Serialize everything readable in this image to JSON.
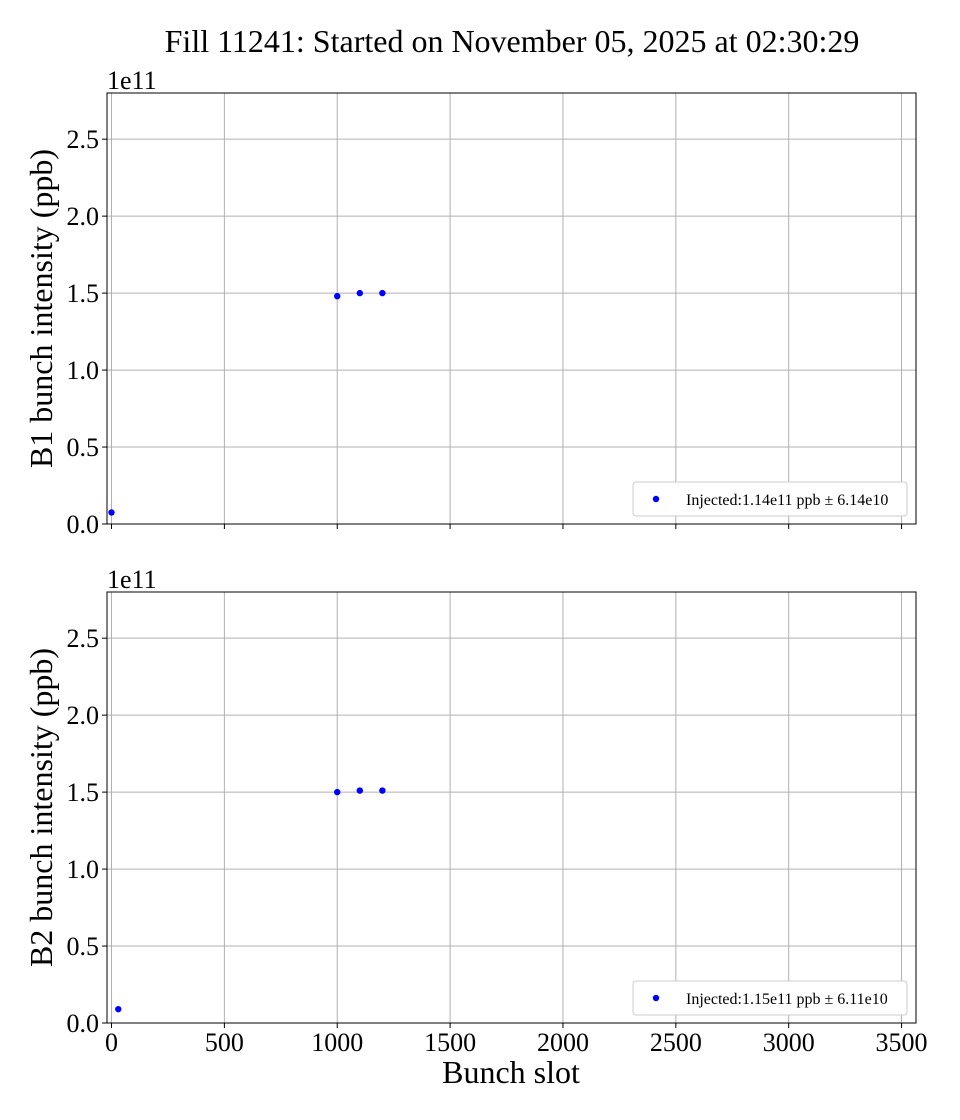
{
  "figure": {
    "title": "Fill 11241: Started on November 05, 2025 at 02:30:29",
    "xlabel": "Bunch slot"
  },
  "colors": {
    "marker": "#0000ff",
    "grid": "#b0b0b0",
    "axes": "#000000",
    "legend_border": "#cccccc"
  },
  "chart_data": [
    {
      "type": "scatter",
      "ylabel": "B1 bunch intensity (ppb)",
      "offset_text": "1e11",
      "xlim": [
        -20,
        3564
      ],
      "ylim": [
        0,
        280000000000.0
      ],
      "x_ticks": [
        0,
        500,
        1000,
        1500,
        2000,
        2500,
        3000,
        3500
      ],
      "x_tick_labels_visible": false,
      "y_ticks": [
        0,
        50000000000.0,
        100000000000.0,
        150000000000.0,
        200000000000.0,
        250000000000.0
      ],
      "y_tick_labels": [
        "0.0",
        "0.5",
        "1.0",
        "1.5",
        "2.0",
        "2.5"
      ],
      "grid": true,
      "legend_position": "lower right",
      "series": [
        {
          "name": "Injected:1.14e11 ppb ± 6.14e10",
          "x": [
            0,
            1000,
            1100,
            1200
          ],
          "y": [
            7500000000.0,
            148000000000.0,
            150000000000.0,
            150000000000.0
          ]
        }
      ]
    },
    {
      "type": "scatter",
      "ylabel": "B2 bunch intensity (ppb)",
      "offset_text": "1e11",
      "xlim": [
        -20,
        3564
      ],
      "ylim": [
        0,
        280000000000.0
      ],
      "x_ticks": [
        0,
        500,
        1000,
        1500,
        2000,
        2500,
        3000,
        3500
      ],
      "x_tick_labels": [
        "0",
        "500",
        "1000",
        "1500",
        "2000",
        "2500",
        "3000",
        "3500"
      ],
      "x_tick_labels_visible": true,
      "y_ticks": [
        0,
        50000000000.0,
        100000000000.0,
        150000000000.0,
        200000000000.0,
        250000000000.0
      ],
      "y_tick_labels": [
        "0.0",
        "0.5",
        "1.0",
        "1.5",
        "2.0",
        "2.5"
      ],
      "grid": true,
      "legend_position": "lower right",
      "series": [
        {
          "name": "Injected:1.15e11 ppb ± 6.11e10",
          "x": [
            30,
            1000,
            1100,
            1200
          ],
          "y": [
            9000000000.0,
            150000000000.0,
            151000000000.0,
            151000000000.0
          ]
        }
      ]
    }
  ]
}
